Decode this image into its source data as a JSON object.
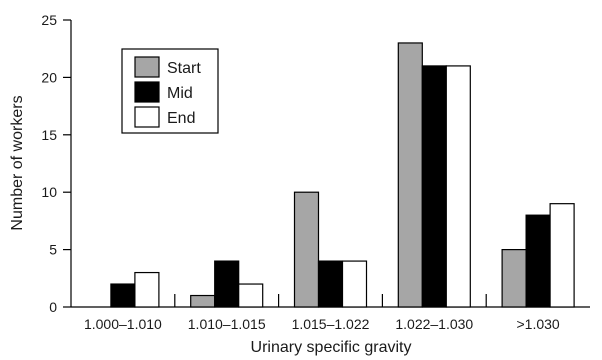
{
  "chart_data": {
    "type": "bar",
    "title": "",
    "xlabel": "Urinary specific gravity",
    "ylabel": "Number of workers",
    "categories": [
      "1.000–1.010",
      "1.010–1.015",
      "1.015–1.022",
      "1.022–1.030",
      ">1.030"
    ],
    "series": [
      {
        "name": "Start",
        "color": "#a6a6a6",
        "values": [
          0,
          1,
          10,
          23,
          5
        ]
      },
      {
        "name": "Mid",
        "color": "#000000",
        "values": [
          2,
          4,
          4,
          21,
          8
        ]
      },
      {
        "name": "End",
        "color": "#ffffff",
        "values": [
          3,
          2,
          4,
          21,
          9
        ]
      }
    ],
    "ylim": [
      0,
      25
    ],
    "yticks": [
      0,
      5,
      10,
      15,
      20,
      25
    ],
    "grid": false,
    "legend_position": "top-left"
  }
}
